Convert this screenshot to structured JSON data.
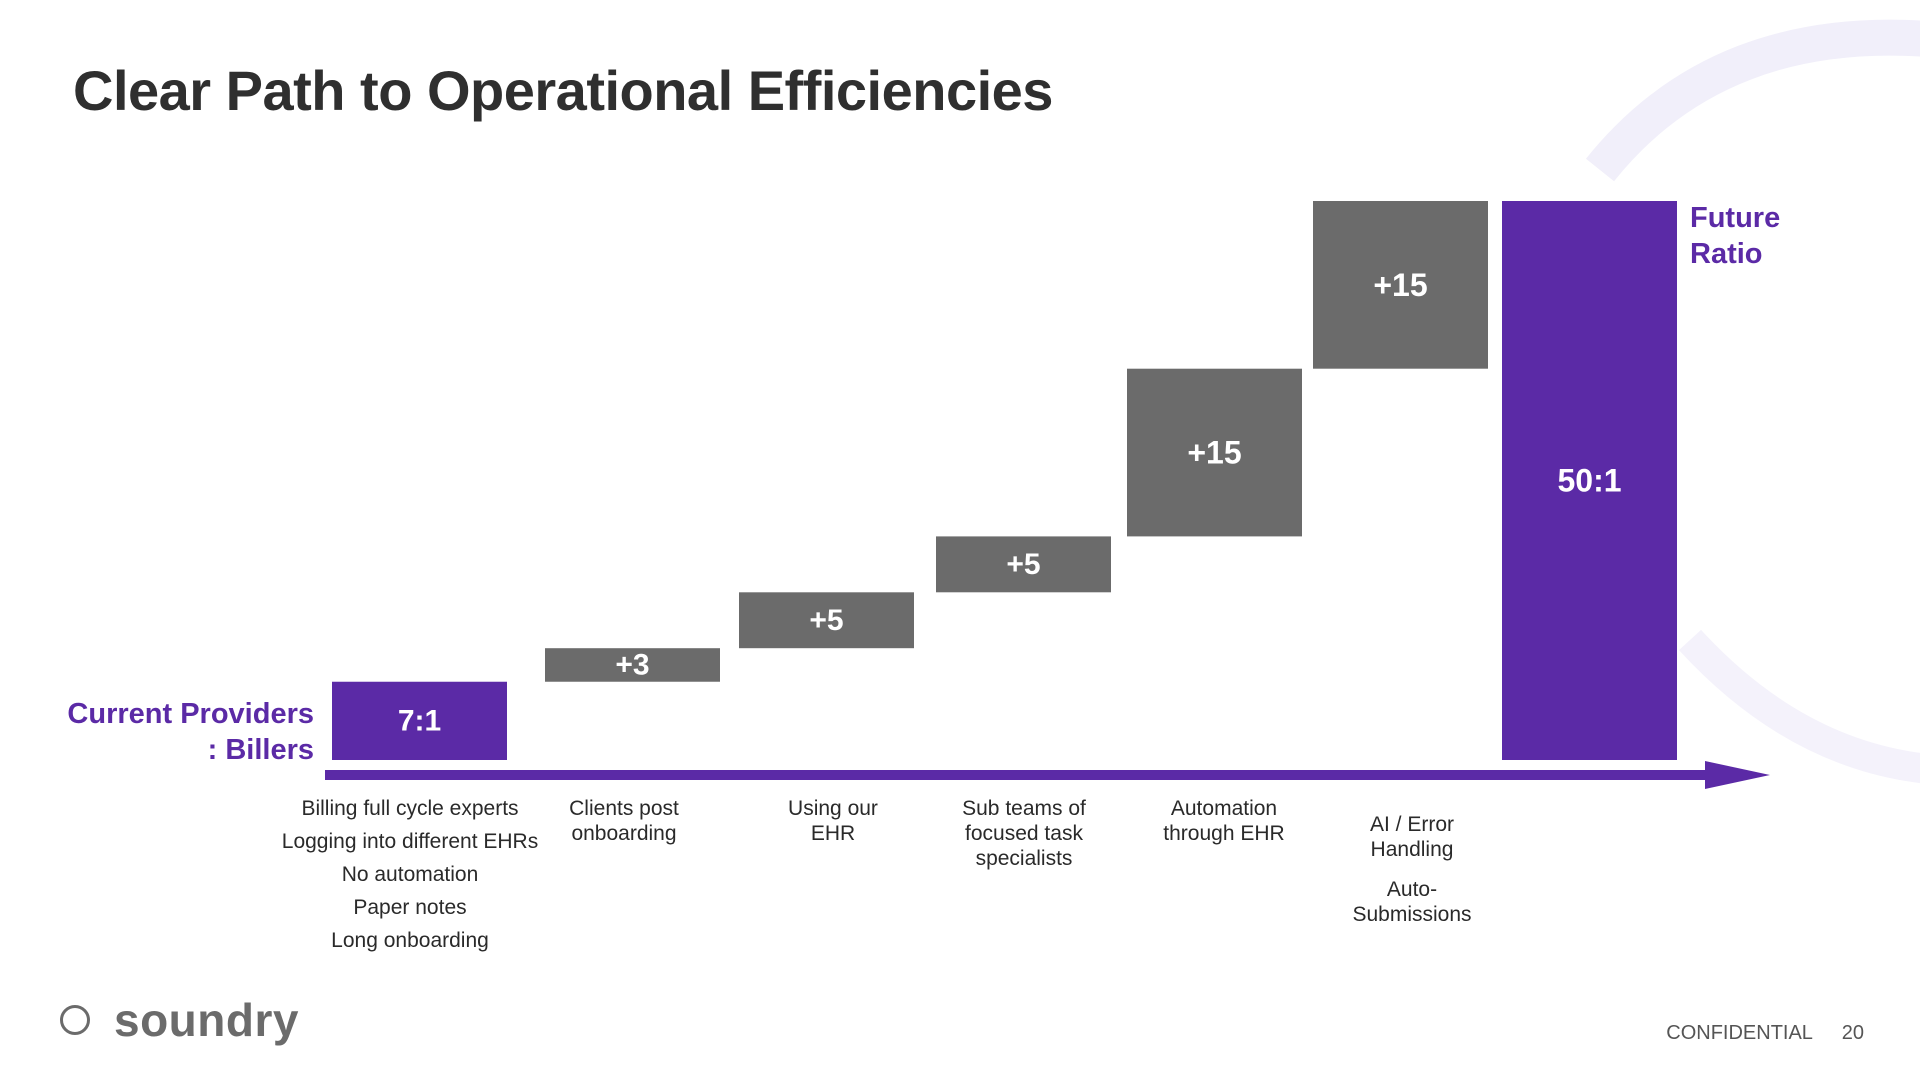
{
  "slide": {
    "title": "Clear Path to Operational Efficiencies",
    "start_label_line1": "Current Providers",
    "start_label_line2": ": Billers",
    "end_label_line1": "Future",
    "end_label_line2": "Ratio",
    "brand_name": "soundry",
    "footer_confidential": "CONFIDENTIAL",
    "page_number": "20"
  },
  "colors": {
    "accent": "#5b2aa6",
    "step": "#6b6b6b",
    "title": "#2f2f2f"
  },
  "chart_data": {
    "type": "waterfall",
    "title": "Clear Path to Operational Efficiencies",
    "ylim": [
      0,
      50
    ],
    "start": {
      "label": "7:1",
      "value": 7
    },
    "steps": [
      {
        "label": "+3",
        "value": 3
      },
      {
        "label": "+5",
        "value": 5
      },
      {
        "label": "+5",
        "value": 5
      },
      {
        "label": "+15",
        "value": 15
      },
      {
        "label": "+15",
        "value": 15
      }
    ],
    "end": {
      "label": "50:1",
      "value": 50
    },
    "categories": [
      {
        "lines": [
          "Billing full cycle experts",
          "Logging into different EHRs",
          "No automation",
          "Paper notes",
          "Long onboarding"
        ]
      },
      {
        "lines": [
          "Clients post",
          "onboarding"
        ]
      },
      {
        "lines": [
          "Using our",
          "EHR"
        ]
      },
      {
        "lines": [
          "Sub teams of",
          "focused task",
          "specialists"
        ]
      },
      {
        "lines": [
          "Automation",
          "through EHR"
        ]
      },
      {
        "lines": [
          "AI / Error",
          "Handling",
          "Auto-",
          "Submissions"
        ]
      }
    ]
  }
}
